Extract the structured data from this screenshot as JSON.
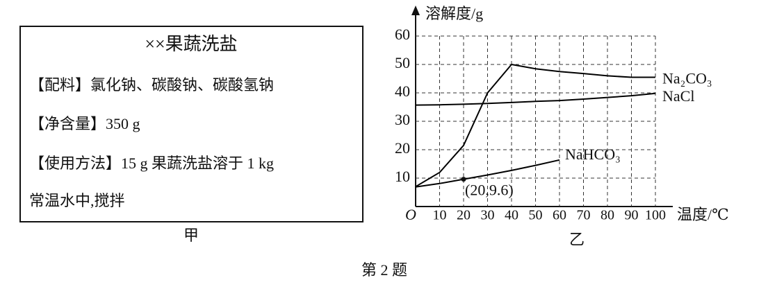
{
  "label_box": {
    "title": "××果蔬洗盐",
    "lines": [
      "【配料】氯化钠、碳酸钠、碳酸氢钠",
      "【净含量】350 g",
      "【使用方法】15 g 果蔬洗盐溶于 1 kg",
      "常温水中,搅拌"
    ]
  },
  "captions": {
    "left": "甲",
    "right": "乙",
    "figure": "第 2 题"
  },
  "chart_data": {
    "type": "line",
    "y_label": "溶解度/g",
    "x_label": "温度/℃",
    "origin_label": "O",
    "x": [
      0,
      10,
      20,
      30,
      40,
      50,
      60,
      70,
      80,
      90,
      100
    ],
    "xlim": [
      0,
      100
    ],
    "ylim": [
      0,
      60
    ],
    "xticks": [
      10,
      20,
      30,
      40,
      50,
      60,
      70,
      80,
      90,
      100
    ],
    "yticks": [
      10,
      20,
      30,
      40,
      50,
      60
    ],
    "grid": true,
    "series": [
      {
        "name": "Na₂CO₃",
        "color": "#000000",
        "values": [
          7,
          12,
          21.5,
          40,
          50,
          48.5,
          47.5,
          46.8,
          46,
          45.5,
          45.5
        ]
      },
      {
        "name": "NaCl",
        "color": "#000000",
        "values": [
          35.7,
          35.8,
          36,
          36.3,
          36.6,
          37,
          37.3,
          37.8,
          38.4,
          39,
          39.8
        ]
      },
      {
        "name": "NaHCO₃",
        "color": "#000000",
        "values": [
          6.9,
          8.1,
          9.6,
          11.1,
          12.7,
          14.5,
          16.4,
          null,
          null,
          null,
          null
        ]
      }
    ],
    "annotations": [
      {
        "text": "(20,9.6)",
        "x": 20,
        "y": 9.6
      }
    ]
  }
}
